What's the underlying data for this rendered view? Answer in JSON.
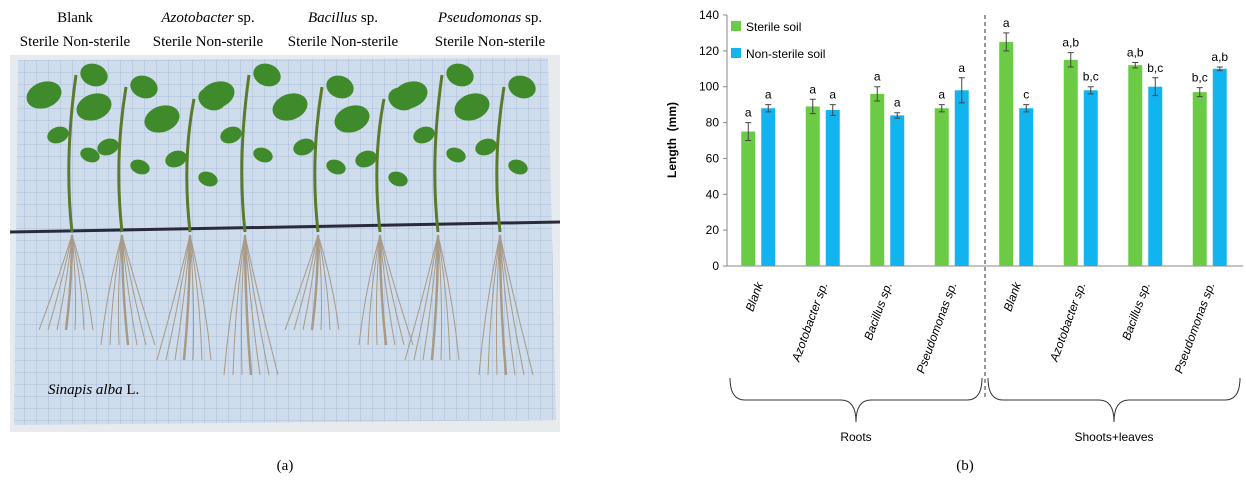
{
  "panel_a": {
    "headers": [
      {
        "genus": "Blank"
      },
      {
        "genus": "Azotobacter",
        "suffix": "sp."
      },
      {
        "genus": "Bacillus",
        "suffix": "sp."
      },
      {
        "genus": "Pseudomonas",
        "suffix": "sp."
      }
    ],
    "sublabels": [
      "Sterile Non-sterile",
      "Sterile Non-sterile",
      "Sterile Non-sterile",
      "Sterile Non-sterile"
    ],
    "species": {
      "name": "Sinapis alba",
      "author": "L."
    }
  },
  "captions": [
    "(a)",
    "(b)"
  ],
  "chart_data": {
    "type": "bar",
    "y_label": "Length  (mm)",
    "categories": [
      "Blank",
      "Azotobacter sp.",
      "Bacillus sp.",
      "Pseudomonas sp.",
      "Blank",
      "Azotobacter sp.",
      "Bacillus sp.",
      "Pseudomonas sp."
    ],
    "groups": [
      "Roots",
      "Shoots+leaves"
    ],
    "series": [
      {
        "name": "Sterile soil",
        "color": "#6ccb45",
        "values": [
          75,
          89,
          96,
          88,
          125,
          115,
          112,
          97
        ],
        "errors": [
          5,
          4,
          4,
          2,
          5,
          4,
          1.5,
          2.5
        ],
        "letters": [
          "a",
          "a",
          "a",
          "a",
          "a",
          "a,b",
          "a,b",
          "b,c"
        ]
      },
      {
        "name": "Non-sterile soil",
        "color": "#12b4ef",
        "values": [
          88,
          87,
          84,
          98,
          88,
          98,
          100,
          110
        ],
        "errors": [
          2,
          3,
          1.5,
          7,
          2,
          2,
          5,
          1
        ],
        "letters": [
          "a",
          "a",
          "a",
          "a",
          "c",
          "b,c",
          "b,c",
          "a,b"
        ]
      }
    ],
    "ylim": [
      0,
      140
    ],
    "yticks": [
      0,
      20,
      40,
      60,
      80,
      100,
      120,
      140
    ],
    "legend": "upper left"
  }
}
